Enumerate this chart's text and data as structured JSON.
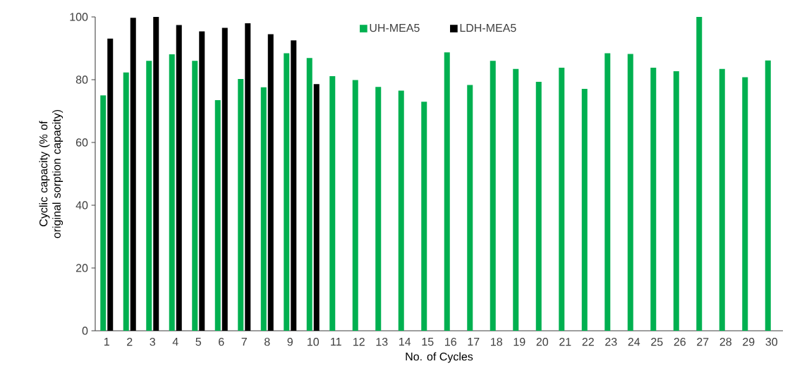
{
  "chart_data": {
    "type": "bar",
    "xlabel": "No. of Cycles",
    "ylabel": "Cyclic capacity (% of original sorption capacity)",
    "categories": [
      "1",
      "2",
      "3",
      "4",
      "5",
      "6",
      "7",
      "8",
      "9",
      "10",
      "11",
      "12",
      "13",
      "14",
      "15",
      "16",
      "17",
      "18",
      "19",
      "20",
      "21",
      "22",
      "23",
      "24",
      "25",
      "26",
      "27",
      "28",
      "29",
      "30"
    ],
    "series": [
      {
        "name": "UH-MEA5",
        "color": "#00b050",
        "values": [
          75,
          82.3,
          86,
          88.1,
          86,
          73.5,
          80.2,
          77.6,
          88.4,
          86.9,
          81.1,
          79.9,
          77.7,
          76.5,
          73,
          88.7,
          78.3,
          86,
          83.4,
          79.3,
          83.8,
          77.1,
          88.4,
          88.2,
          83.8,
          82.7,
          100,
          83.4,
          80.8,
          86.1
        ]
      },
      {
        "name": "LDH-MEA5",
        "color": "#000000",
        "values": [
          93.1,
          99.7,
          100,
          97.4,
          95.4,
          96.5,
          98,
          94.5,
          92.5,
          78.6,
          null,
          null,
          null,
          null,
          null,
          null,
          null,
          null,
          null,
          null,
          null,
          null,
          null,
          null,
          null,
          null,
          null,
          null,
          null,
          null
        ]
      }
    ],
    "ylim": [
      0,
      100
    ],
    "yticks": [
      0,
      20,
      40,
      60,
      80,
      100
    ],
    "grid": false,
    "legend": "top"
  }
}
